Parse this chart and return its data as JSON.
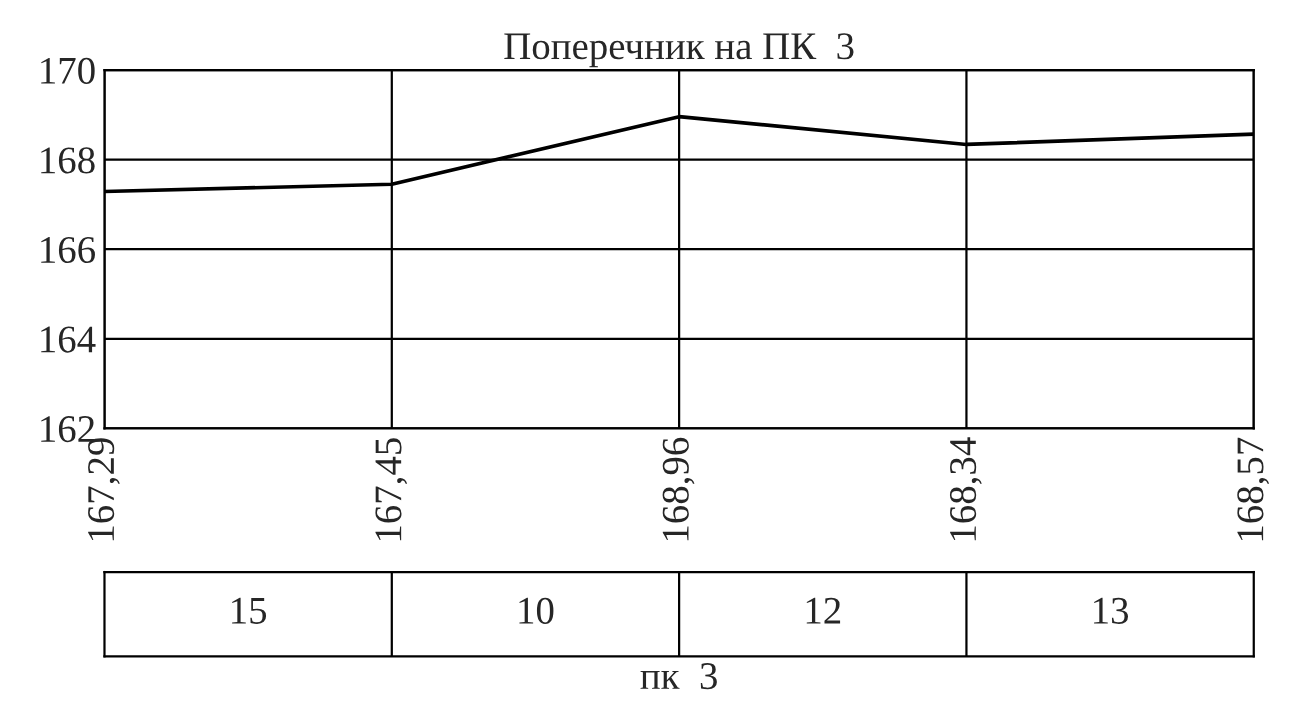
{
  "chart_data": {
    "type": "line",
    "title": "Поперечник на ПК  3",
    "xlabel": "пк  3",
    "categories": [
      "167,29",
      "167,45",
      "168,96",
      "168,34",
      "168,57"
    ],
    "series": [
      {
        "color": "#000000",
        "values": [
          167.29,
          167.45,
          168.96,
          168.34,
          168.57
        ]
      }
    ],
    "ylim": [
      162,
      170
    ],
    "yticks": [
      162,
      164,
      166,
      168,
      170
    ],
    "grid": true,
    "annotations": [
      "15",
      "10",
      "12",
      "13"
    ]
  }
}
